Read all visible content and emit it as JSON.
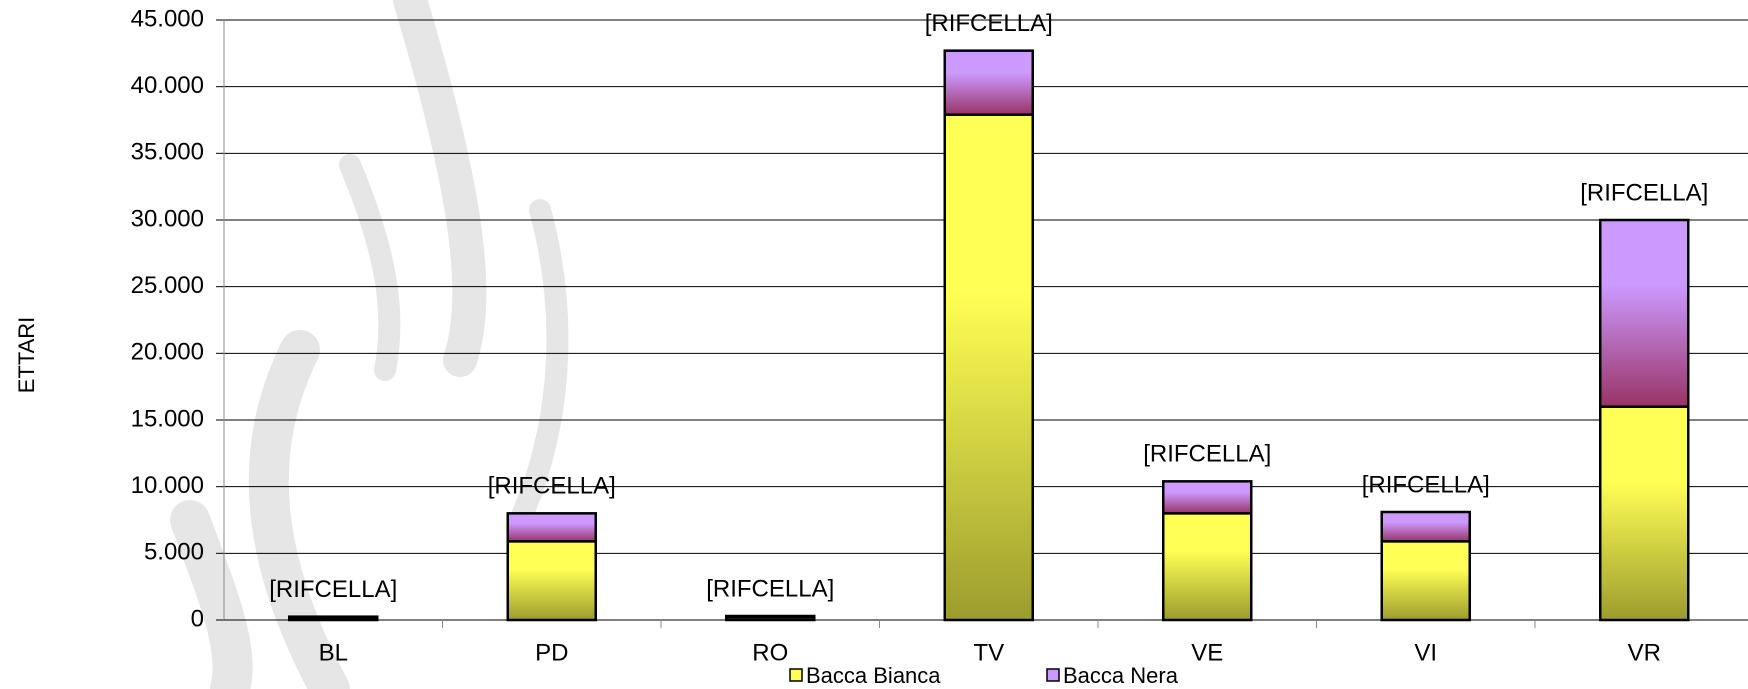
{
  "chart_data": {
    "type": "stacked_bar",
    "y_axis_label": "ETTARI",
    "categories": [
      "BL",
      "PD",
      "RO",
      "TV",
      "VE",
      "VI",
      "VR"
    ],
    "series": [
      {
        "name": "Bacca Bianca",
        "color": "#ffff55",
        "shade": "#9c9c2e",
        "values": [
          150,
          5900,
          200,
          37900,
          8000,
          5900,
          16000
        ]
      },
      {
        "name": "Bacca Nera",
        "color": "#cc99ff",
        "shade": "#993366",
        "values": [
          100,
          2100,
          100,
          4800,
          2400,
          2200,
          14000
        ]
      }
    ],
    "data_labels": [
      "[RIFCELLA]",
      "[RIFCELLA]",
      "[RIFCELLA]",
      "[RIFCELLA]",
      "[RIFCELLA]",
      "[RIFCELLA]",
      "[RIFCELLA]"
    ],
    "ylim": [
      0,
      45000
    ],
    "yticks": [
      0,
      {
        "value": 5000,
        "label": "5.000"
      },
      {
        "value": 10000,
        "label": "10.000"
      },
      {
        "value": 15000,
        "label": "15.000"
      },
      {
        "value": 20000,
        "label": "20.000"
      },
      {
        "value": 25000,
        "label": "25.000"
      },
      {
        "value": 30000,
        "label": "30.000"
      },
      {
        "value": 35000,
        "label": "35.000"
      },
      {
        "value": 40000,
        "label": "40.000"
      },
      {
        "value": 45000,
        "label": "45.000"
      }
    ],
    "grid": true,
    "legend": "bottom"
  }
}
